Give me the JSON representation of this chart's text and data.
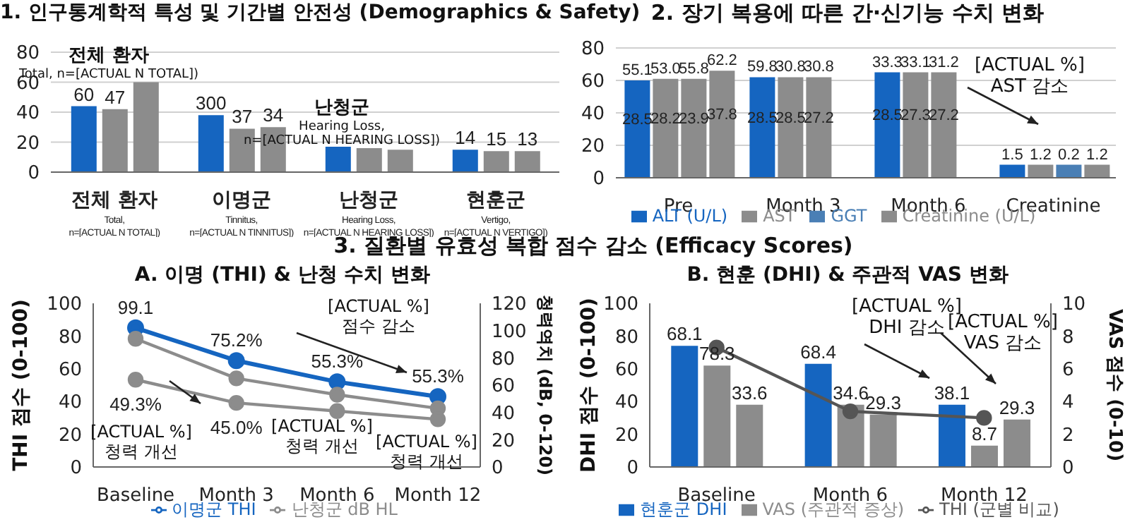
{
  "chart_data": [
    {
      "type": "bar",
      "title": "1. 인구통계학적 특성 및 기간별 안전성 (Demographics & Safety)",
      "categories": [
        "전체 환자\nTotal,\nn=[ACTUAL N TOTAL])",
        "이명군\nTinnitus,\nn=[ACTUAL N TINNITUS])",
        "난청군\nHearing Loss,\nn=[ACTUAL N HEARING LOSS])",
        "현훈군\nVertigo,\nn=[ACTUAL N VERTIGO])"
      ],
      "series": [
        {
          "color": "#1565c0",
          "values": [
            44,
            38,
            17,
            15
          ]
        },
        {
          "color": "#8c8c8c",
          "values": [
            42,
            29,
            16,
            14
          ]
        },
        {
          "color": "#8c8c8c",
          "values": [
            60,
            30,
            15,
            14
          ]
        }
      ],
      "ylim": [
        0,
        80
      ],
      "yticks": [
        0,
        20,
        40,
        60,
        80
      ],
      "grid": "y",
      "annotations": [
        "전체 환자\nTotal, n=[ACTUAL N TOTAL])",
        "난청군\nHearing Loss,\nn=[ACTUAL N HEARING LOSS])",
        "60",
        "47",
        "300",
        "37",
        "34",
        "14",
        "15",
        "13"
      ]
    },
    {
      "type": "bar",
      "title": "2. 장기 복용에 따른 간·신기능 수치 변화",
      "categories": [
        "Pre",
        "Month 3",
        "Month 6",
        "Creatinine"
      ],
      "series": [
        {
          "name": "ALT (U/L)",
          "color": "#1565c0",
          "values": [
            60,
            62,
            65,
            8
          ]
        },
        {
          "name": "AST",
          "color": "#8c8c8c",
          "values": [
            61,
            62,
            65,
            8
          ]
        },
        {
          "name": "GGT",
          "color": "#4a7fb5",
          "colors": [
            "#8c8c8c",
            "#8c8c8c",
            "#8c8c8c",
            "#4a7fb5"
          ],
          "values": [
            61,
            62,
            65,
            8
          ]
        },
        {
          "name": "Creatinine (U/L)",
          "color": "#8c8c8c",
          "values": [
            66,
            null,
            null,
            8
          ]
        }
      ],
      "ylim": [
        0,
        80
      ],
      "yticks": [
        0,
        20,
        40,
        60,
        80
      ],
      "grid": "y",
      "legend": "bottom",
      "annotations": [
        "[ACTUAL %]\nAST 감소",
        "55.1",
        "53.0",
        "55.8",
        "62.2",
        "59.8",
        "30.8",
        "30.8",
        "33.3",
        "33.1",
        "31.2",
        "1.5",
        "1.2",
        "0.2",
        "1.2",
        "28.5",
        "28.2",
        "23.9",
        "37.8",
        "28.5",
        "28.5",
        "27.2",
        "28.5",
        "27.3",
        "27.2"
      ]
    },
    {
      "type": "line",
      "title": "3. 질환별 유효성 복합 점수 감소 (Efficacy Scores)",
      "subtitle": "A. 이명 (THI) & 난청 수치 변화",
      "categories": [
        "Baseline",
        "Month 3",
        "Month 6",
        "Month 12"
      ],
      "series": [
        {
          "name": "이명군 THI",
          "color": "#1565c0",
          "values": [
            85,
            65,
            52,
            43
          ]
        },
        {
          "name": "난청군 dB HL",
          "color": "#8c8c8c",
          "axis": "y2",
          "values": [
            94,
            65,
            53,
            43
          ]
        },
        {
          "color": "#8c8c8c",
          "axis": "y2",
          "values": [
            64,
            47,
            41,
            35
          ]
        }
      ],
      "ylim": [
        0,
        100
      ],
      "yticks": [
        0,
        20,
        40,
        60,
        80,
        100
      ],
      "y2lim": [
        0,
        120
      ],
      "y2ticks": [
        0,
        20,
        40,
        60,
        80,
        100,
        120
      ],
      "ylabel": "THI 점수 (0-100)",
      "y2label": "청력역치 (dB, 0-120)",
      "marker": "circle",
      "legend": "bottom",
      "annotations": [
        "[ACTUAL %]\n점수 감소",
        "[ACTUAL %]\n청력 개선",
        "[ACTUAL %]\n청력 개선",
        "[ACTUAL %]\n청력 개선",
        "99.1",
        "75.2%",
        "55.3%",
        "55.3%",
        "49.3%",
        "45.0%"
      ]
    },
    {
      "type": "bar",
      "subtitle": "B. 현훈 (DHI) & 주관적 VAS 변화",
      "categories": [
        "Baseline",
        "Month 6",
        "Month 12"
      ],
      "series": [
        {
          "name": "현훈군 DHI",
          "color": "#1565c0",
          "values": [
            74,
            63,
            38
          ]
        },
        {
          "name": "VAS (주관적 증상)",
          "color": "#8c8c8c",
          "axis": "y2",
          "values": [
            6.2,
            3.8,
            1.3
          ]
        },
        {
          "color": "#8c8c8c",
          "axis": "y2",
          "values": [
            3.8,
            3.2,
            2.9
          ]
        },
        {
          "name": "THI (군별 비교)",
          "type": "line",
          "color": "#555555",
          "values": [
            73,
            34,
            30
          ]
        }
      ],
      "ylim": [
        0,
        100
      ],
      "yticks": [
        0,
        20,
        40,
        60,
        80,
        100
      ],
      "y2lim": [
        0,
        10
      ],
      "y2ticks": [
        0,
        2,
        4,
        6,
        8,
        10
      ],
      "ylabel": "DHI 점수 (0-100)",
      "y2label": "VAS 점수 (0-10)",
      "marker": "circle",
      "legend": "bottom",
      "annotations": [
        "[ACTUAL %]\nDHI 감소",
        "[ACTUAL %]\nVAS 감소",
        "68.1",
        "68.4",
        "38.1",
        "78.3",
        "34.6",
        "8.7",
        "33.6",
        "29.3",
        "29.3"
      ]
    }
  ]
}
